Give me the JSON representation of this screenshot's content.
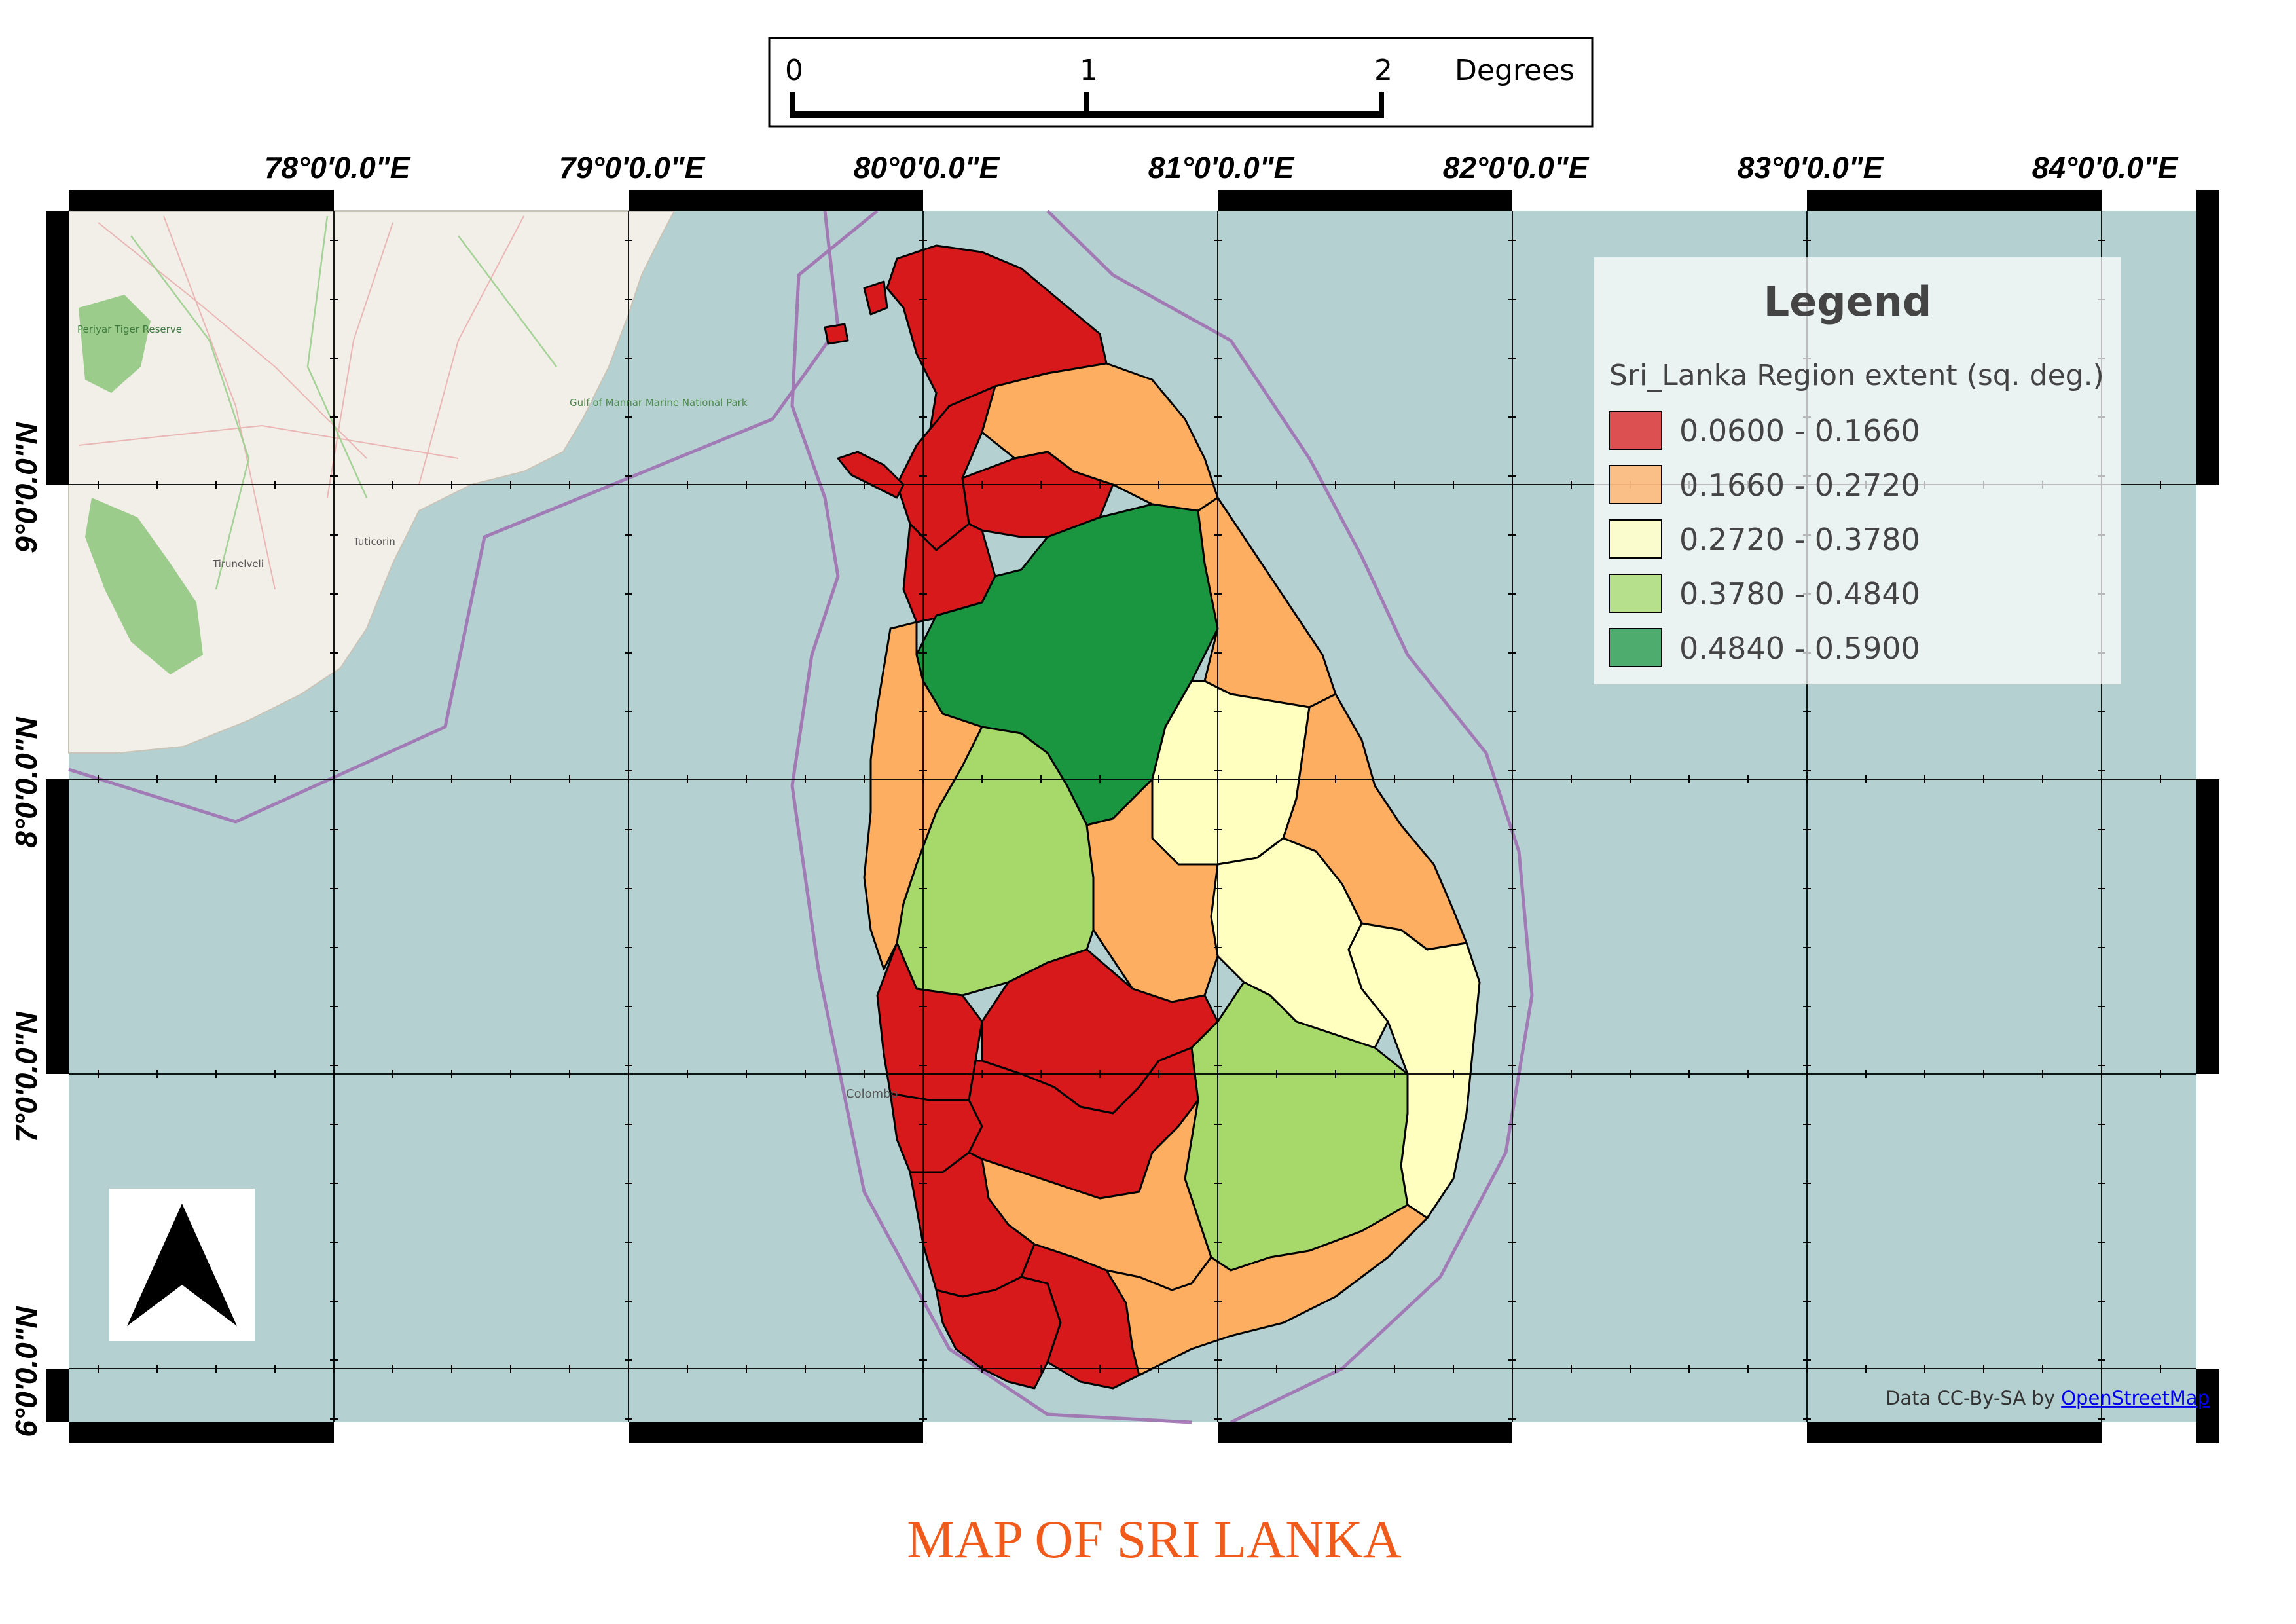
{
  "scale_bar": {
    "ticks": [
      "0",
      "1",
      "2"
    ],
    "unit": "Degrees"
  },
  "longitude_labels": [
    "78°0'0.0\"E",
    "79°0'0.0\"E",
    "80°0'0.0\"E",
    "81°0'0.0\"E",
    "82°0'0.0\"E",
    "83°0'0.0\"E",
    "84°0'0.0\"E"
  ],
  "latitude_labels": [
    "9°0'0.0\"N",
    "8°0'0.0\"N",
    "7°0'0.0\"N",
    "6°0'0.0\"N"
  ],
  "legend": {
    "title": "Legend",
    "subtitle": "Sri_Lanka Region extent (sq. deg.)",
    "classes": [
      {
        "range": "0.0600 - 0.1660",
        "color": "#d7191c"
      },
      {
        "range": "0.1660 - 0.2720",
        "color": "#fdae61"
      },
      {
        "range": "0.2720 - 0.3780",
        "color": "#ffffc0"
      },
      {
        "range": "0.3780 - 0.4840",
        "color": "#a6d96a"
      },
      {
        "range": "0.4840 - 0.5900",
        "color": "#1a9641"
      }
    ]
  },
  "attribution": {
    "prefix": "Data CC-By-SA by ",
    "link": "OpenStreetMap"
  },
  "basemap_labels": [
    "Tirunelveli",
    "Tuticorin",
    "Gulf of Mannar Marine National Park",
    "Periyar Tiger Reserve",
    "Colombo"
  ],
  "title": "MAP OF SRI LANKA",
  "colors": {
    "sea": "#b5d0d0",
    "land": "#f2efe9",
    "forest": "#8cc57a",
    "boundary": "#9e6cb0",
    "title": "#f05a1a"
  }
}
